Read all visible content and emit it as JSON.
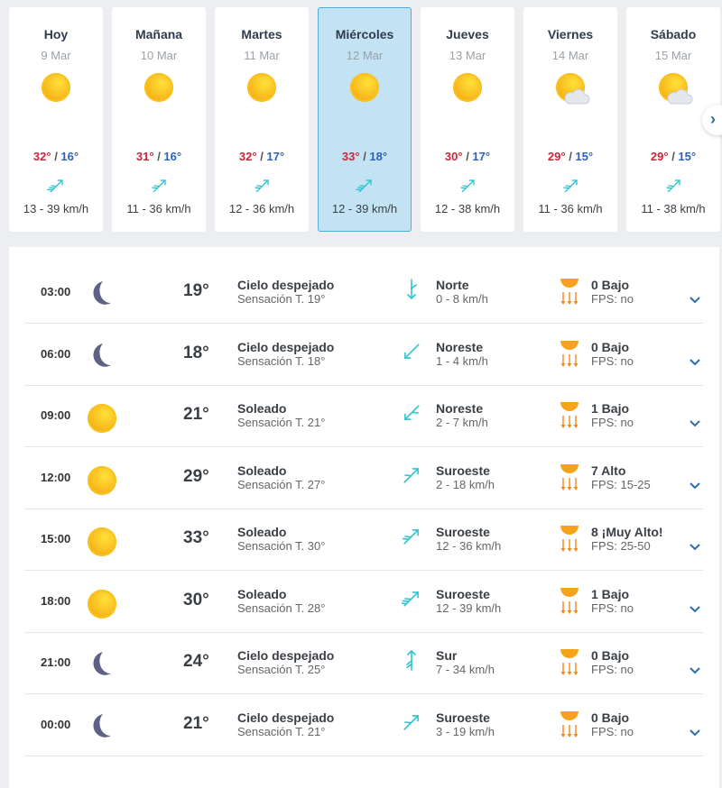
{
  "colors": {
    "max": "#c9263b",
    "min": "#2d62b8",
    "wind": "#2ec4cf",
    "selected_bg": "#c3e3f4",
    "selected_border": "#4cb0d9"
  },
  "days": [
    {
      "name": "Hoy",
      "date": "9 Mar",
      "icon": "sun-icon",
      "max": "32°",
      "min": "16°",
      "wind": "13 - 39 km/h",
      "dir": "Suroeste",
      "feathers": 3,
      "selected": false
    },
    {
      "name": "Mañana",
      "date": "10 Mar",
      "icon": "sun-icon",
      "max": "31°",
      "min": "16°",
      "wind": "11 - 36 km/h",
      "dir": "Suroeste",
      "feathers": 2,
      "selected": false
    },
    {
      "name": "Martes",
      "date": "11 Mar",
      "icon": "sun-icon",
      "max": "32°",
      "min": "17°",
      "wind": "12 - 36 km/h",
      "dir": "Suroeste",
      "feathers": 2,
      "selected": false
    },
    {
      "name": "Miércoles",
      "date": "12 Mar",
      "icon": "sun-icon",
      "max": "33°",
      "min": "18°",
      "wind": "12 - 39 km/h",
      "dir": "Suroeste",
      "feathers": 3,
      "selected": true
    },
    {
      "name": "Jueves",
      "date": "13 Mar",
      "icon": "sun-icon",
      "max": "30°",
      "min": "17°",
      "wind": "12 - 38 km/h",
      "dir": "Suroeste",
      "feathers": 2,
      "selected": false
    },
    {
      "name": "Viernes",
      "date": "14 Mar",
      "icon": "partly-cloudy-icon",
      "max": "29°",
      "min": "15°",
      "wind": "11 - 36 km/h",
      "dir": "Suroeste",
      "feathers": 2,
      "selected": false
    },
    {
      "name": "Sábado",
      "date": "15 Mar",
      "icon": "partly-cloudy-icon",
      "max": "29°",
      "min": "15°",
      "wind": "11 - 38 km/h",
      "dir": "Suroeste",
      "feathers": 2,
      "selected": false
    }
  ],
  "next_icon": "chevron-right-icon",
  "hours": [
    {
      "time": "03:00",
      "icon": "moon-icon",
      "temp": "19°",
      "desc": "Cielo despejado",
      "feel": "Sensación T. 19°",
      "dir": "Norte",
      "speed": "0 - 8 km/h",
      "feathers": 1,
      "uv": "0 Bajo",
      "fps": "FPS: no"
    },
    {
      "time": "06:00",
      "icon": "moon-icon",
      "temp": "18°",
      "desc": "Cielo despejado",
      "feel": "Sensación T. 18°",
      "dir": "Noreste",
      "speed": "1 - 4 km/h",
      "feathers": 0,
      "uv": "0 Bajo",
      "fps": "FPS: no"
    },
    {
      "time": "09:00",
      "icon": "sun-icon",
      "temp": "21°",
      "desc": "Soleado",
      "feel": "Sensación T. 21°",
      "dir": "Noreste",
      "speed": "2 - 7 km/h",
      "feathers": 1,
      "uv": "1 Bajo",
      "fps": "FPS: no"
    },
    {
      "time": "12:00",
      "icon": "sun-icon",
      "temp": "29°",
      "desc": "Soleado",
      "feel": "Sensación T. 27°",
      "dir": "Suroeste",
      "speed": "2 - 18 km/h",
      "feathers": 1,
      "uv": "7 Alto",
      "fps": "FPS: 15-25"
    },
    {
      "time": "15:00",
      "icon": "sun-icon",
      "temp": "33°",
      "desc": "Soleado",
      "feel": "Sensación T. 30°",
      "dir": "Suroeste",
      "speed": "12 - 36 km/h",
      "feathers": 2,
      "uv": "8 ¡Muy Alto!",
      "fps": "FPS: 25-50"
    },
    {
      "time": "18:00",
      "icon": "sun-icon",
      "temp": "30°",
      "desc": "Soleado",
      "feel": "Sensación T. 28°",
      "dir": "Suroeste",
      "speed": "12 - 39 km/h",
      "feathers": 3,
      "uv": "1 Bajo",
      "fps": "FPS: no"
    },
    {
      "time": "21:00",
      "icon": "moon-icon",
      "temp": "24°",
      "desc": "Cielo despejado",
      "feel": "Sensación T. 25°",
      "dir": "Sur",
      "speed": "7 - 34 km/h",
      "feathers": 2,
      "uv": "0 Bajo",
      "fps": "FPS: no"
    },
    {
      "time": "00:00",
      "icon": "moon-icon",
      "temp": "21°",
      "desc": "Cielo despejado",
      "feel": "Sensación T. 21°",
      "dir": "Suroeste",
      "speed": "3 - 19 km/h",
      "feathers": 1,
      "uv": "0 Bajo",
      "fps": "FPS: no"
    }
  ]
}
